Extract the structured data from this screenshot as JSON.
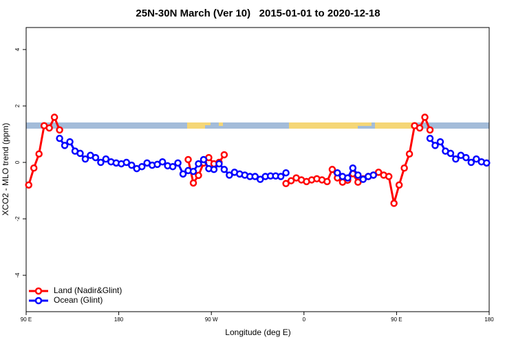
{
  "chart_data": {
    "type": "line",
    "title": "25N-30N March (Ver 10)   2015-01-01 to 2020-12-18",
    "xlabel": "Longitude (deg E)",
    "ylabel": "XCO2 - MLO trend (ppm)",
    "xlim": [
      90,
      540
    ],
    "ylim": [
      -5.29,
      4.78
    ],
    "xticks": [
      {
        "value": 90,
        "label": "90 E"
      },
      {
        "value": 180,
        "label": "180"
      },
      {
        "value": 270,
        "label": "90 W"
      },
      {
        "value": 360,
        "label": "0"
      },
      {
        "value": 450,
        "label": "90 E"
      },
      {
        "value": 540,
        "label": "180"
      }
    ],
    "yticks": [
      -4,
      -2,
      0,
      2,
      4
    ],
    "legend": "bottom-left",
    "x": [
      92.5,
      97.5,
      102.5,
      107.5,
      112.5,
      117.5,
      122.5,
      127.5,
      132.5,
      137.5,
      142.5,
      147.5,
      152.5,
      157.5,
      162.5,
      167.5,
      172.5,
      177.5,
      182.5,
      187.5,
      192.5,
      197.5,
      202.5,
      207.5,
      212.5,
      217.5,
      222.5,
      227.5,
      232.5,
      237.5,
      242.5,
      247.5,
      252.5,
      257.5,
      262.5,
      267.5,
      272.5,
      277.5,
      282.5,
      287.5,
      292.5,
      297.5,
      302.5,
      307.5,
      312.5,
      317.5,
      322.5,
      327.5,
      332.5,
      337.5,
      342.5,
      347.5,
      352.5,
      357.5,
      362.5,
      367.5,
      372.5,
      377.5,
      382.5,
      387.5,
      392.5,
      397.5,
      402.5,
      407.5,
      412.5,
      417.5,
      422.5,
      427.5,
      432.5,
      437.5,
      442.5,
      447.5,
      452.5,
      457.5,
      462.5,
      467.5,
      472.5,
      477.5,
      482.5,
      487.5,
      492.5,
      497.5,
      502.5,
      507.5,
      512.5,
      517.5,
      522.5,
      527.5,
      532.5,
      537.5
    ],
    "series": [
      {
        "name": "Land (Nadir&Glint)",
        "color": "#ff0000",
        "values": [
          -0.8,
          -0.2,
          0.3,
          1.3,
          1.22,
          1.6,
          1.15,
          null,
          null,
          null,
          null,
          null,
          null,
          null,
          null,
          null,
          null,
          null,
          null,
          null,
          null,
          null,
          null,
          null,
          null,
          null,
          null,
          null,
          null,
          null,
          null,
          0.1,
          -0.73,
          -0.46,
          -0.02,
          0.17,
          -0.05,
          0.0,
          0.27,
          null,
          null,
          null,
          null,
          null,
          null,
          null,
          null,
          null,
          null,
          null,
          -0.75,
          -0.65,
          -0.55,
          -0.62,
          -0.68,
          -0.62,
          -0.58,
          -0.62,
          -0.68,
          -0.25,
          -0.55,
          -0.7,
          -0.63,
          -0.4,
          -0.7,
          -0.58,
          -0.5,
          -0.45,
          -0.35,
          -0.45,
          -0.5,
          -1.45,
          -0.8,
          -0.2,
          0.3,
          1.3,
          1.22,
          1.6,
          1.15,
          null,
          null,
          null,
          null,
          null,
          null,
          null,
          null,
          null,
          null,
          null
        ]
      },
      {
        "name": "Ocean (Glint)",
        "color": "#0000ff",
        "values": [
          null,
          null,
          null,
          null,
          null,
          null,
          0.85,
          0.6,
          0.73,
          0.4,
          0.32,
          0.12,
          0.25,
          0.17,
          0,
          0.12,
          0.02,
          -0.02,
          -0.05,
          0,
          -0.1,
          -0.22,
          -0.15,
          -0.02,
          -0.1,
          -0.07,
          0.02,
          -0.12,
          -0.15,
          -0.02,
          -0.41,
          -0.29,
          -0.32,
          -0.05,
          0.1,
          -0.22,
          -0.25,
          -0.05,
          -0.25,
          -0.45,
          -0.35,
          -0.41,
          -0.45,
          -0.5,
          -0.5,
          -0.6,
          -0.5,
          -0.48,
          -0.48,
          -0.5,
          -0.37,
          null,
          null,
          null,
          null,
          null,
          null,
          null,
          null,
          null,
          -0.37,
          -0.5,
          -0.55,
          -0.2,
          -0.45,
          -0.6,
          -0.5,
          -0.45,
          null,
          null,
          null,
          null,
          null,
          null,
          null,
          null,
          null,
          null,
          0.85,
          0.6,
          0.73,
          0.4,
          0.32,
          0.12,
          0.25,
          0.17,
          0,
          0.12,
          0.02,
          -0.02
        ]
      }
    ]
  }
}
